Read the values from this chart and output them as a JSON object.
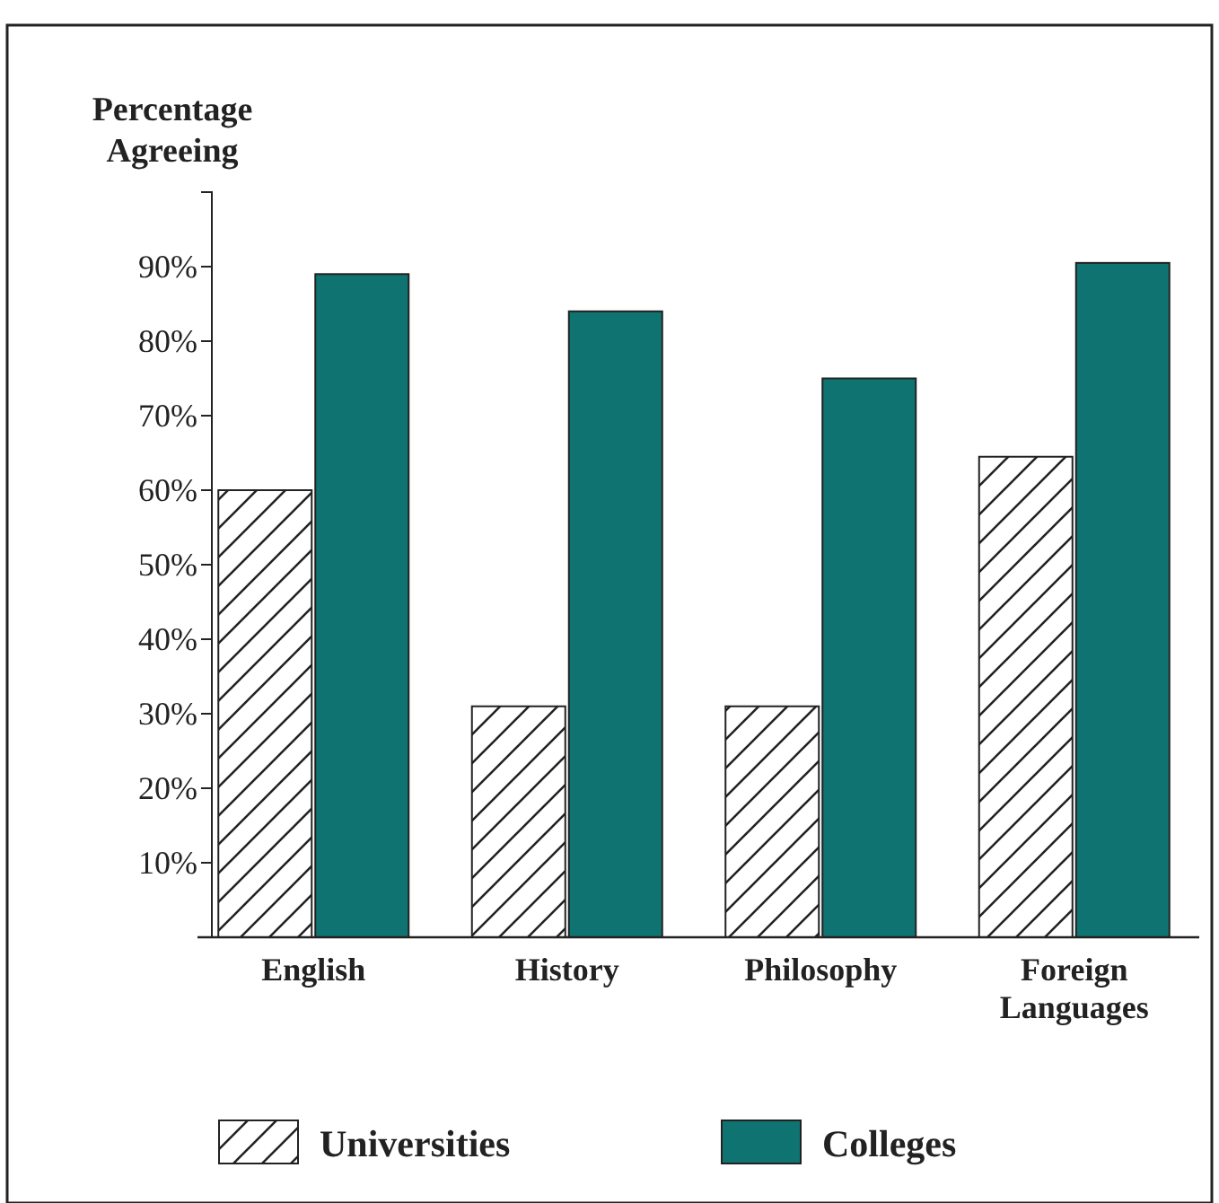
{
  "chart_data": {
    "type": "bar",
    "ylabel": "Percentage Agreeing",
    "categories": [
      "English",
      "History",
      "Philosophy",
      "Foreign Languages"
    ],
    "series": [
      {
        "name": "Universities",
        "color": "#ffffff",
        "values": [
          60,
          31,
          31,
          64.5
        ]
      },
      {
        "name": "Colleges",
        "color": "#0f7471",
        "values": [
          89,
          84,
          75,
          90.5
        ]
      }
    ],
    "ylim": [
      0,
      100
    ],
    "yticks": [
      {
        "value": 10,
        "label": "10%"
      },
      {
        "value": 20,
        "label": "20%"
      },
      {
        "value": 30,
        "label": "30%"
      },
      {
        "value": 40,
        "label": "40%"
      },
      {
        "value": 50,
        "label": "50%"
      },
      {
        "value": 60,
        "label": "60%"
      },
      {
        "value": 70,
        "label": "70%"
      },
      {
        "value": 80,
        "label": "80%"
      },
      {
        "value": 90,
        "label": "90%"
      }
    ],
    "grid": false,
    "legend": "bottom"
  }
}
